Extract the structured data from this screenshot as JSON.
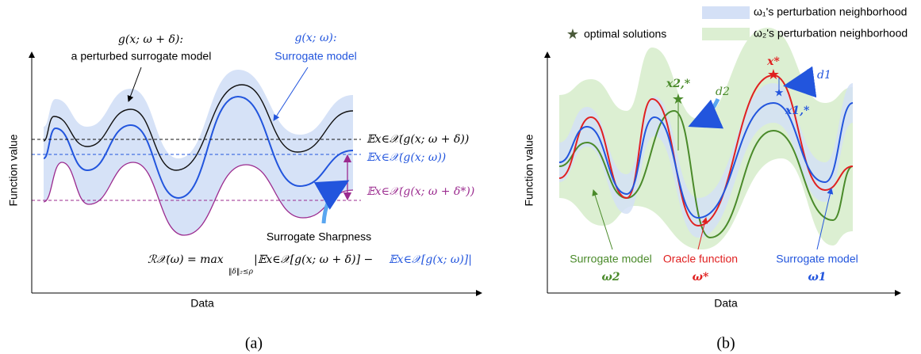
{
  "panel_a": {
    "y_label": "Function value",
    "x_label": "Data",
    "perturbed_title": "g(x; ω + δ):",
    "perturbed_text": "a perturbed surrogate model",
    "surrogate_title": "g(x; ω):",
    "surrogate_text": "Surrogate model",
    "expectation_perturbed": "𝔼x∈𝒳(g(x; ω + δ))",
    "expectation_surrogate": "𝔼x∈𝒳(g(x; ω))",
    "expectation_worst": "𝔼x∈𝒳(g(x; ω + δ*))",
    "sharpness_label": "Surrogate Sharpness",
    "formula_left": "ℛ𝒳(ω) = max",
    "formula_constraint": "‖δ‖₂≤ρ",
    "formula_perturbed": "|𝔼x∈𝒳[g(x; ω + δ)] −",
    "formula_surrogate": "𝔼x∈𝒳[g(x; ω)]|",
    "caption": "(a)"
  },
  "panel_b": {
    "legend": [
      "ω₁'s perturbation neighborhood",
      "ω₂'s perturbation neighborhood"
    ],
    "optimal_label": "optimal solutions",
    "y_label": "Function value",
    "x_label": "Data",
    "x_star": "x*",
    "x1_star": "x1,*",
    "x2_star": "x2,*",
    "d1": "d1",
    "d2": "d2",
    "labels": [
      {
        "text": "Surrogate model",
        "sub": "ω2"
      },
      {
        "text": "Oracle function",
        "sub": "ω*"
      },
      {
        "text": "Surrogate model",
        "sub": "ω1"
      }
    ],
    "caption": "(b)"
  }
}
